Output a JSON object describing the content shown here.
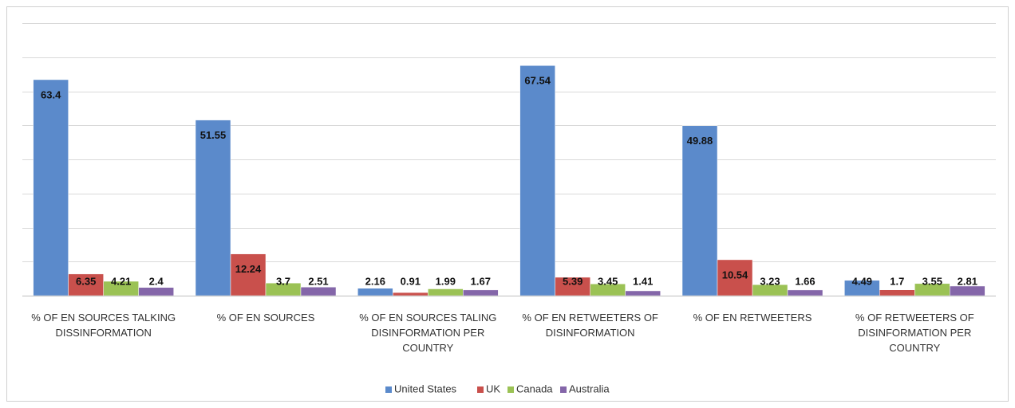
{
  "chart_data": {
    "type": "bar",
    "categories": [
      "% OF EN SOURCES TALKING DISSINFORMATION",
      "% OF EN SOURCES",
      "% OF EN SOURCES TALING DISINFORMATION PER COUNTRY",
      "% OF EN RETWEETERS OF DISINFORMATION",
      "% OF EN RETWEETERS",
      "% OF RETWEETERS OF DISINFORMATION PER COUNTRY"
    ],
    "series": [
      {
        "name": "United States",
        "color": "#5b8acb",
        "values": [
          63.4,
          51.55,
          2.16,
          67.54,
          49.88,
          4.49
        ]
      },
      {
        "name": "UK",
        "color": "#c9504c",
        "values": [
          6.35,
          12.24,
          0.91,
          5.39,
          10.54,
          1.7
        ]
      },
      {
        "name": "Canada",
        "color": "#9bc255",
        "values": [
          4.21,
          3.7,
          1.99,
          3.45,
          3.23,
          3.55
        ]
      },
      {
        "name": "Australia",
        "color": "#8466a9",
        "values": [
          2.4,
          2.51,
          1.67,
          1.41,
          1.66,
          2.81
        ]
      }
    ],
    "ylim": [
      0,
      80
    ],
    "yticks": [
      0,
      10,
      20,
      30,
      40,
      50,
      60,
      70,
      80
    ],
    "grid": true,
    "legend": "bottom"
  }
}
